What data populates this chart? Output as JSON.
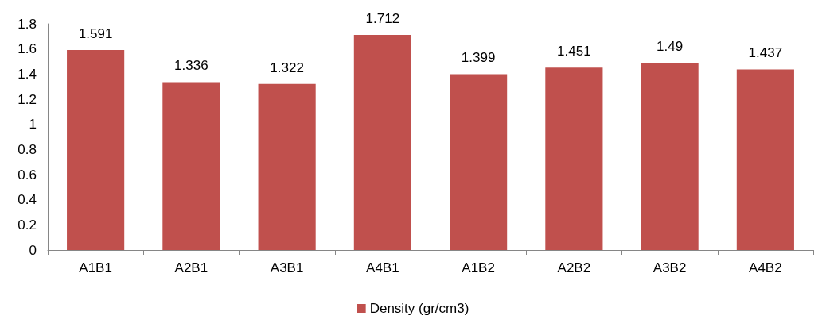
{
  "chart_data": {
    "type": "bar",
    "categories": [
      "A1B1",
      "A2B1",
      "A3B1",
      "A4B1",
      "A1B2",
      "A2B2",
      "A3B2",
      "A4B2"
    ],
    "series": [
      {
        "name": "Density (gr/cm3)",
        "color": "#c0504d",
        "values": [
          1.591,
          1.336,
          1.322,
          1.712,
          1.399,
          1.451,
          1.49,
          1.437
        ]
      }
    ],
    "ylim": [
      0,
      1.8
    ],
    "yticks": [
      0,
      0.2,
      0.4,
      0.6,
      0.8,
      1,
      1.2,
      1.4,
      1.6,
      1.8
    ],
    "grid": false,
    "legend": "bottom",
    "data_labels": true
  }
}
